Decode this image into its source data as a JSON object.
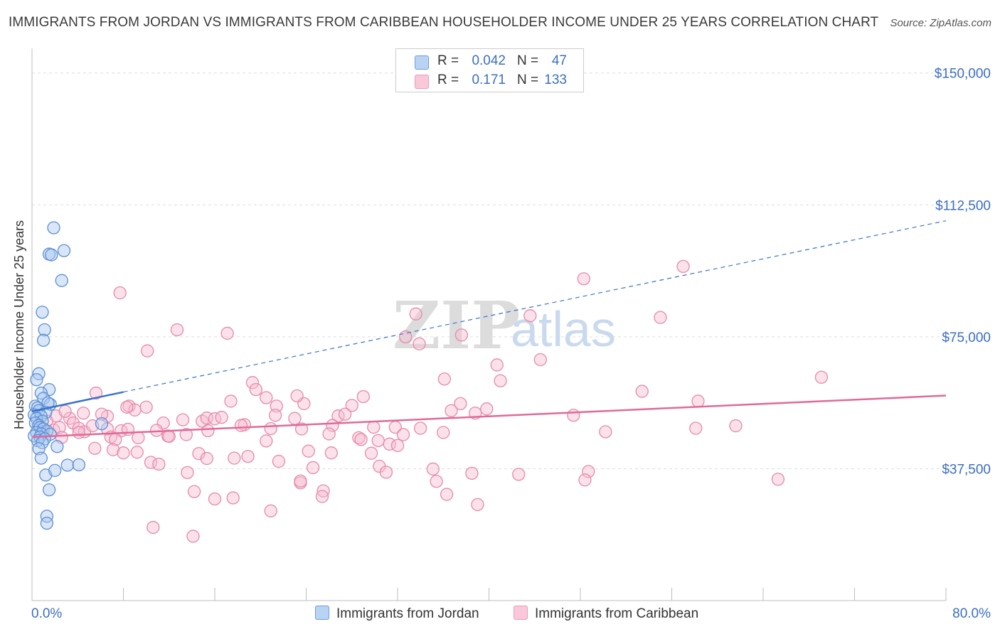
{
  "chart_data": {
    "type": "scatter",
    "title": "IMMIGRANTS FROM JORDAN VS IMMIGRANTS FROM CARIBBEAN HOUSEHOLDER INCOME UNDER 25 YEARS CORRELATION CHART",
    "source": "Source: ZipAtlas.com",
    "ylabel": "Householder Income Under 25 years",
    "xlabel": "",
    "xlim": [
      0,
      80
    ],
    "ylim": [
      0,
      155000
    ],
    "x_tick_labels": [
      "0.0%",
      "80.0%"
    ],
    "y_ticks": [
      {
        "value": 150000,
        "label": "$150,000"
      },
      {
        "value": 112500,
        "label": "$112,500"
      },
      {
        "value": 75000,
        "label": "$75,000"
      },
      {
        "value": 37500,
        "label": "$37,500"
      }
    ],
    "watermark": {
      "zip": "ZIP",
      "atlas": "atlas"
    },
    "colors": {
      "jordan_fill": "#a9c8f0",
      "jordan_stroke": "#5d8fd6",
      "jordan_line": "#3a72cc",
      "caribbean_fill": "#f6bcd0",
      "caribbean_stroke": "#e58aaa",
      "caribbean_line": "#e06a98"
    },
    "legend": [
      {
        "r_label": "R =",
        "r_value": "0.042",
        "n_label": "N =",
        "n_value": "47"
      },
      {
        "r_label": "R =",
        "r_value": "0.171",
        "n_label": "N =",
        "n_value": "133"
      }
    ],
    "series": [
      {
        "name": "Immigrants from Jordan",
        "trend": {
          "x1": 0.0,
          "y1": 53800,
          "x2": 8.0,
          "y2": 59300,
          "solid_until": 8.0,
          "dashed_x2": 80.0,
          "dashed_y2": 108000
        },
        "points": [
          [
            1.9,
            106000
          ],
          [
            1.5,
            98500
          ],
          [
            2.8,
            99500
          ],
          [
            1.7,
            98300
          ],
          [
            2.6,
            91000
          ],
          [
            0.9,
            82000
          ],
          [
            1.1,
            77000
          ],
          [
            1.0,
            74000
          ],
          [
            0.6,
            64500
          ],
          [
            0.4,
            62800
          ],
          [
            1.5,
            60000
          ],
          [
            0.8,
            59000
          ],
          [
            1.0,
            57500
          ],
          [
            1.6,
            55800
          ],
          [
            1.4,
            56200
          ],
          [
            0.3,
            55300
          ],
          [
            0.5,
            54800
          ],
          [
            0.6,
            54000
          ],
          [
            1.2,
            53500
          ],
          [
            0.2,
            52800
          ],
          [
            0.8,
            52400
          ],
          [
            0.4,
            51800
          ],
          [
            0.9,
            51000
          ],
          [
            0.3,
            50500
          ],
          [
            6.1,
            50300
          ],
          [
            0.6,
            49800
          ],
          [
            0.7,
            49200
          ],
          [
            1.0,
            48800
          ],
          [
            1.3,
            48200
          ],
          [
            0.4,
            47800
          ],
          [
            0.8,
            47400
          ],
          [
            1.6,
            47300
          ],
          [
            0.2,
            46800
          ],
          [
            0.7,
            46500
          ],
          [
            1.1,
            46000
          ],
          [
            0.5,
            45500
          ],
          [
            0.9,
            44900
          ],
          [
            2.2,
            43800
          ],
          [
            0.6,
            43200
          ],
          [
            0.8,
            40500
          ],
          [
            3.1,
            38500
          ],
          [
            4.1,
            38600
          ],
          [
            1.2,
            35700
          ],
          [
            2.0,
            37000
          ],
          [
            1.5,
            31500
          ],
          [
            1.3,
            24000
          ],
          [
            1.3,
            22000
          ]
        ]
      },
      {
        "name": "Immigrants from Caribbean",
        "trend": {
          "x1": 0.0,
          "y1": 46500,
          "x2": 80.0,
          "y2": 58300
        },
        "points": [
          [
            7.7,
            87500
          ],
          [
            12.7,
            77000
          ],
          [
            10.1,
            71000
          ],
          [
            17.1,
            76000
          ],
          [
            33.6,
            81500
          ],
          [
            37.6,
            75500
          ],
          [
            32.7,
            75000
          ],
          [
            33.9,
            73000
          ],
          [
            43.6,
            81000
          ],
          [
            48.3,
            91500
          ],
          [
            55.0,
            80500
          ],
          [
            57.0,
            95000
          ],
          [
            44.5,
            68500
          ],
          [
            40.7,
            67000
          ],
          [
            36.1,
            63000
          ],
          [
            41.0,
            62500
          ],
          [
            19.3,
            62000
          ],
          [
            19.6,
            60000
          ],
          [
            53.4,
            59500
          ],
          [
            69.1,
            63500
          ],
          [
            5.6,
            59000
          ],
          [
            10.0,
            55000
          ],
          [
            8.5,
            55300
          ],
          [
            9.0,
            54200
          ],
          [
            20.5,
            57700
          ],
          [
            17.4,
            56700
          ],
          [
            21.4,
            55300
          ],
          [
            23.8,
            56000
          ],
          [
            29.0,
            58000
          ],
          [
            23.2,
            58200
          ],
          [
            37.5,
            56000
          ],
          [
            28.0,
            55500
          ],
          [
            26.8,
            52500
          ],
          [
            27.4,
            53000
          ],
          [
            36.7,
            54000
          ],
          [
            38.8,
            53300
          ],
          [
            39.8,
            54500
          ],
          [
            47.4,
            52700
          ],
          [
            58.3,
            56700
          ],
          [
            2.1,
            52500
          ],
          [
            3.3,
            51800
          ],
          [
            4.5,
            53300
          ],
          [
            6.6,
            52400
          ],
          [
            6.1,
            53000
          ],
          [
            8.3,
            55000
          ],
          [
            1.3,
            51000
          ],
          [
            2.9,
            53800
          ],
          [
            3.6,
            50500
          ],
          [
            11.5,
            50500
          ],
          [
            13.2,
            51400
          ],
          [
            14.9,
            51000
          ],
          [
            15.3,
            51900
          ],
          [
            16.0,
            51700
          ],
          [
            16.6,
            52100
          ],
          [
            18.6,
            50000
          ],
          [
            21.3,
            52700
          ],
          [
            23.0,
            51800
          ],
          [
            26.3,
            49800
          ],
          [
            29.9,
            49300
          ],
          [
            31.8,
            49300
          ],
          [
            34.0,
            49000
          ],
          [
            1.9,
            48500
          ],
          [
            2.4,
            49200
          ],
          [
            4.1,
            49000
          ],
          [
            4.6,
            48000
          ],
          [
            5.3,
            49700
          ],
          [
            6.6,
            48800
          ],
          [
            6.9,
            46500
          ],
          [
            7.8,
            48300
          ],
          [
            8.4,
            48700
          ],
          [
            9.3,
            46300
          ],
          [
            10.9,
            48400
          ],
          [
            11.9,
            46800
          ],
          [
            13.5,
            47200
          ],
          [
            15.4,
            48300
          ],
          [
            18.3,
            49800
          ],
          [
            20.9,
            48900
          ],
          [
            23.6,
            48800
          ],
          [
            26.0,
            47400
          ],
          [
            28.6,
            46300
          ],
          [
            30.3,
            45500
          ],
          [
            32.5,
            47200
          ],
          [
            36.0,
            47800
          ],
          [
            50.2,
            48000
          ],
          [
            58.1,
            49000
          ],
          [
            61.6,
            49700
          ],
          [
            2.6,
            46400
          ],
          [
            4.1,
            47800
          ],
          [
            7.3,
            45800
          ],
          [
            12.0,
            46700
          ],
          [
            14.6,
            41800
          ],
          [
            18.9,
            41000
          ],
          [
            20.5,
            45400
          ],
          [
            24.2,
            42500
          ],
          [
            26.2,
            42000
          ],
          [
            28.8,
            45800
          ],
          [
            29.7,
            41900
          ],
          [
            31.3,
            44500
          ],
          [
            32.0,
            44100
          ],
          [
            5.5,
            43300
          ],
          [
            7.1,
            42900
          ],
          [
            8.0,
            42000
          ],
          [
            9.2,
            42200
          ],
          [
            10.4,
            39300
          ],
          [
            11.1,
            38800
          ],
          [
            13.6,
            36400
          ],
          [
            15.3,
            40400
          ],
          [
            17.7,
            40500
          ],
          [
            21.6,
            39600
          ],
          [
            24.6,
            37800
          ],
          [
            30.4,
            38200
          ],
          [
            31.0,
            36500
          ],
          [
            35.1,
            37400
          ],
          [
            35.4,
            33900
          ],
          [
            38.5,
            36200
          ],
          [
            42.6,
            35900
          ],
          [
            48.7,
            36700
          ],
          [
            48.4,
            34300
          ],
          [
            65.3,
            34500
          ],
          [
            23.5,
            33500
          ],
          [
            14.2,
            31000
          ],
          [
            16.0,
            28900
          ],
          [
            17.6,
            29200
          ],
          [
            25.5,
            31200
          ],
          [
            25.4,
            29600
          ],
          [
            36.3,
            30200
          ],
          [
            39.0,
            27300
          ],
          [
            20.9,
            25500
          ],
          [
            10.6,
            20800
          ],
          [
            14.1,
            18300
          ],
          [
            23.5,
            34000
          ]
        ]
      }
    ],
    "bottom_legend": [
      "Immigrants from Jordan",
      "Immigrants from Caribbean"
    ]
  }
}
